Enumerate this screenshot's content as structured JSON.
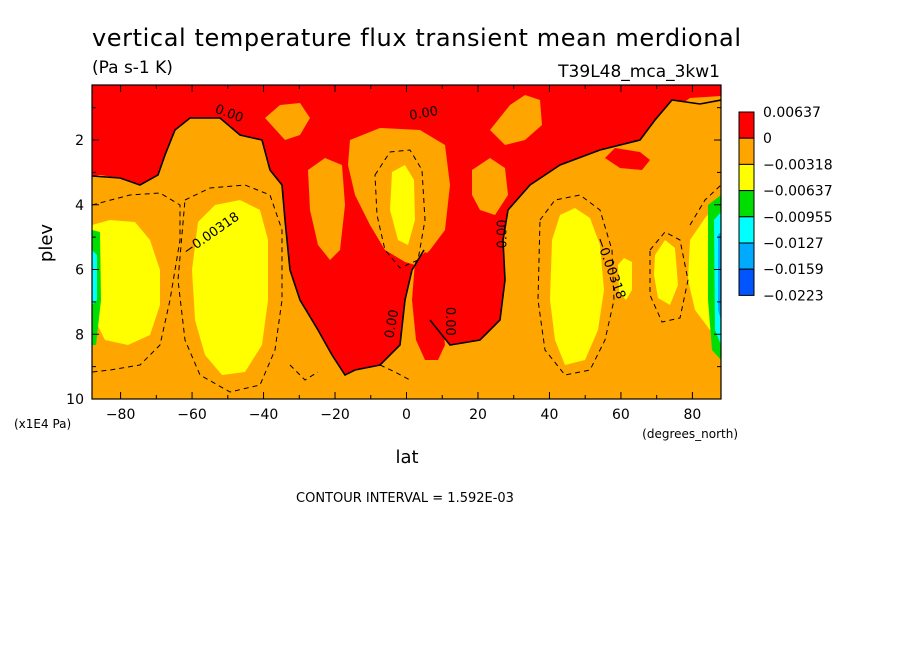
{
  "chart_data": {
    "type": "heatmap",
    "title": "vertical temperature flux transient mean merdional",
    "units": "(Pa s-1 K)",
    "dataset": "T39L48_mca_3kw1",
    "xlabel": "lat",
    "xunits": "(degrees_north)",
    "ylabel": "plev",
    "yunits": "(x1E4 Pa)",
    "xlim": [
      -88,
      88
    ],
    "ylim": [
      10,
      0.3
    ],
    "xticks": [
      -80,
      -60,
      -40,
      -20,
      0,
      20,
      40,
      60,
      80
    ],
    "yticks": [
      2,
      4,
      6,
      8,
      10
    ],
    "contour_interval_note": "CONTOUR INTERVAL = 1.592E-03",
    "legend_position": "right",
    "legend_levels": [
      {
        "label": "0.00637",
        "color": "#ff0000"
      },
      {
        "label": "0",
        "color": "#ffa500"
      },
      {
        "label": "−0.00318",
        "color": "#ffff00"
      },
      {
        "label": "−0.00637",
        "color": "#00dd00"
      },
      {
        "label": "−0.00955",
        "color": "#00ffff"
      },
      {
        "label": "−0.0127",
        "color": "#00aaff"
      },
      {
        "label": "−0.0159",
        "color": "#0055ff"
      },
      {
        "label": "−0.0223",
        "color": ""
      }
    ],
    "contour_labels": [
      {
        "text": "0.00",
        "lat": -50,
        "plev": 1.3
      },
      {
        "text": "0.00",
        "lat": 5,
        "plev": 1.3
      },
      {
        "text": "−0.00318",
        "lat": -54,
        "plev": 5.0
      },
      {
        "text": "0.00",
        "lat": 28,
        "plev": 4.9
      },
      {
        "text": "−0.00318",
        "lat": 56,
        "plev": 6.0
      },
      {
        "text": "0.00",
        "lat": -3,
        "plev": 7.7
      },
      {
        "text": "0.00",
        "lat": 11,
        "plev": 7.6
      }
    ],
    "regions": [
      {
        "level": "orange",
        "color": "#ffa500",
        "description": "background between -0.00318 and 0"
      },
      {
        "level": "red",
        "color": "#ff0000",
        "description": "positive flux, upper levels and tropics"
      },
      {
        "level": "yellow",
        "color": "#ffff00",
        "description": "flux below -0.00318, midlatitude lower levels"
      },
      {
        "level": "green",
        "color": "#00dd00",
        "description": "polar edges"
      },
      {
        "level": "cyan",
        "color": "#00ffff",
        "description": "polar edges"
      }
    ]
  }
}
